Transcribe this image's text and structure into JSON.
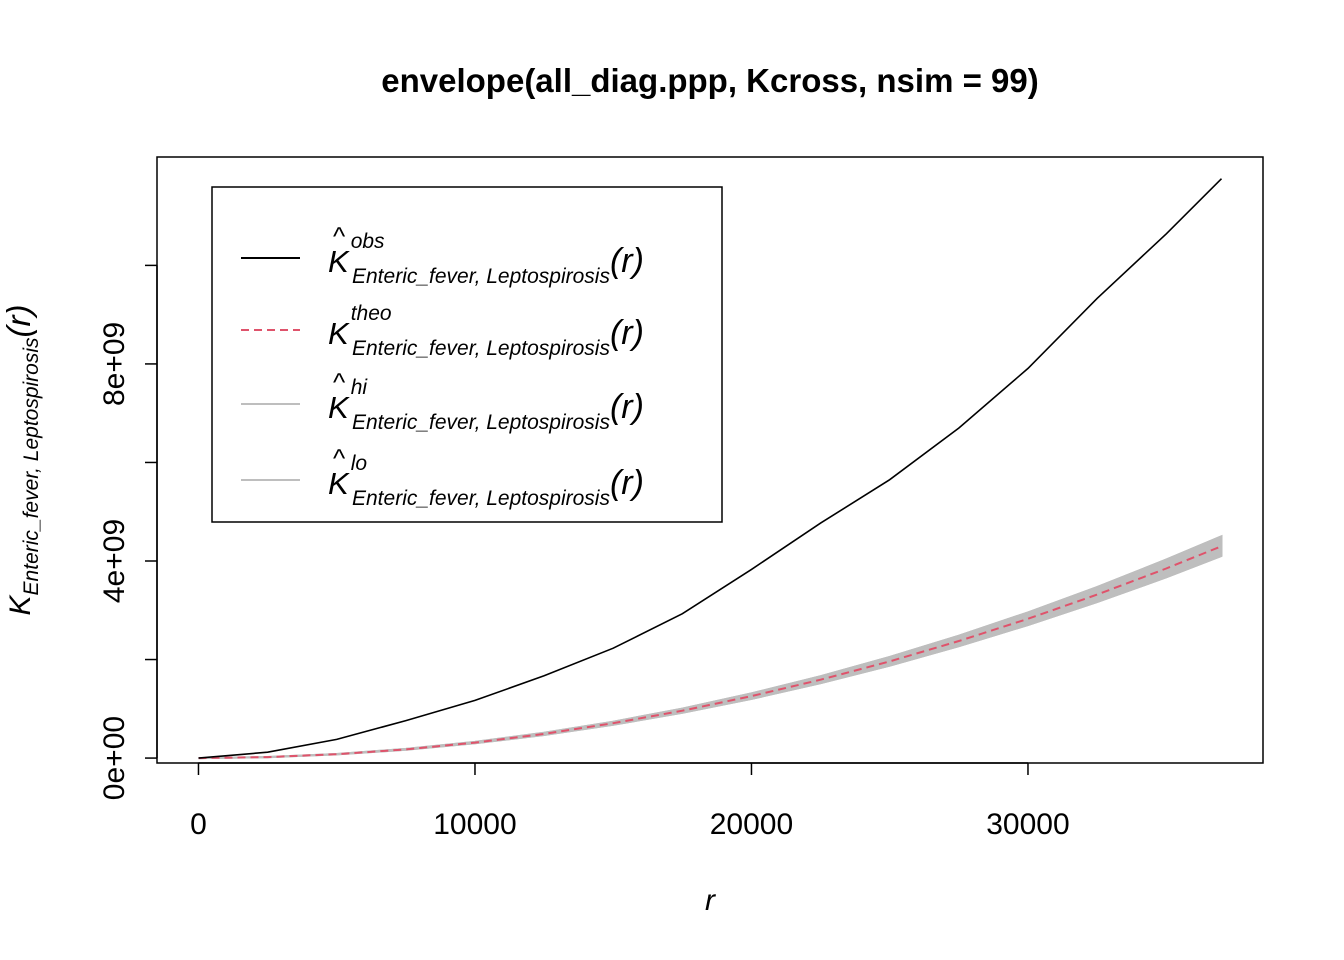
{
  "chart_data": {
    "type": "line",
    "title": "envelope(all_diag.ppp, Kcross, nsim = 99)",
    "xlabel": "r",
    "ylabel": {
      "main": "K",
      "subscript": "Enteric_fever, Leptospirosis",
      "arg": "(r)"
    },
    "xlim": [
      -1500,
      38500
    ],
    "ylim": [
      -100000000,
      12200000000
    ],
    "x_ticks": [
      0,
      10000,
      20000,
      30000
    ],
    "x_tick_labels": [
      "0",
      "10000",
      "20000",
      "30000"
    ],
    "y_ticks": [
      0,
      2000000000,
      4000000000,
      6000000000,
      8000000000,
      10000000000
    ],
    "y_tick_labels": [
      "0e+00",
      "",
      "4e+09",
      "",
      "8e+09",
      ""
    ],
    "grid": false,
    "legend_position": "top-left",
    "legend": [
      {
        "key": "obs",
        "symbol": "K",
        "hat": true,
        "superscript": "obs",
        "subscript": "Enteric_fever, Leptospirosis",
        "arg": "(r)",
        "color": "#000000",
        "dash": "solid"
      },
      {
        "key": "theo",
        "symbol": "K",
        "hat": false,
        "superscript": "theo",
        "subscript": "Enteric_fever, Leptospirosis",
        "arg": "(r)",
        "color": "#DF536B",
        "dash": "dashed"
      },
      {
        "key": "hi",
        "symbol": "K",
        "hat": true,
        "superscript": "hi",
        "subscript": "Enteric_fever, Leptospirosis",
        "arg": "(r)",
        "color": "#BEBEBE",
        "dash": "solid"
      },
      {
        "key": "lo",
        "symbol": "K",
        "hat": true,
        "superscript": "lo",
        "subscript": "Enteric_fever, Leptospirosis",
        "arg": "(r)",
        "color": "#BEBEBE",
        "dash": "solid"
      }
    ],
    "x": [
      0,
      2500,
      5000,
      7500,
      10000,
      12500,
      15000,
      17500,
      20000,
      22500,
      25000,
      27500,
      30000,
      32500,
      35000,
      37000
    ],
    "series": [
      {
        "key": "obs",
        "values": [
          0,
          120000000,
          380000000,
          760000000,
          1170000000,
          1670000000,
          2230000000,
          2930000000,
          3830000000,
          4770000000,
          5650000000,
          6700000000,
          7910000000,
          9330000000,
          10640000000,
          11760000000
        ]
      },
      {
        "key": "theo",
        "values": [
          0,
          19600000,
          78500000,
          177000000,
          314000000,
          491000000,
          707000000,
          962000000,
          1257000000,
          1590000000,
          1963000000,
          2376000000,
          2827000000,
          3318000000,
          3848000000,
          4301000000
        ]
      },
      {
        "key": "hi",
        "values": [
          0,
          21000000,
          83000000,
          186000000,
          329000000,
          514000000,
          739000000,
          1005000000,
          1313000000,
          1661000000,
          2051000000,
          2483000000,
          2956000000,
          3471000000,
          4028000000,
          4502000000
        ]
      },
      {
        "key": "lo",
        "values": [
          0,
          18300000,
          74000000,
          168000000,
          299000000,
          468000000,
          675000000,
          919000000,
          1201000000,
          1520000000,
          1876000000,
          2270000000,
          2700000000,
          3166000000,
          3670000000,
          4102000000
        ]
      }
    ]
  }
}
